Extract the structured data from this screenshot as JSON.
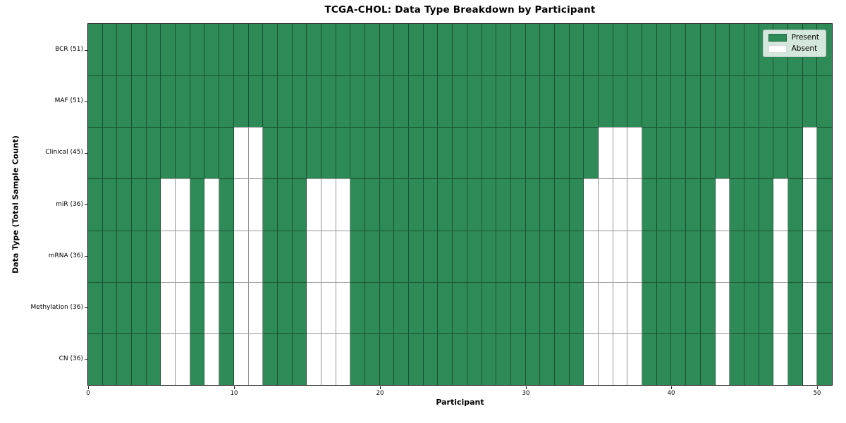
{
  "title": "TCGA-CHOL: Data Type Breakdown by Participant",
  "colors": {
    "present": "#2e8b57",
    "absent": "#ffffff",
    "grid_line": "rgba(0,0,0,0.42)",
    "legend_background": "rgba(255,255,255,0.8)"
  },
  "legend": {
    "items": [
      {
        "label": "Present",
        "swatch": "present-swatch",
        "color": "#2e8b57"
      },
      {
        "label": "Absent",
        "swatch": "absent-swatch",
        "color": "#ffffff"
      }
    ]
  },
  "chart_data": {
    "type": "heatmap",
    "title": "TCGA-CHOL: Data Type Breakdown by Participant",
    "xlabel": "Participant",
    "ylabel": "Data Type (Total Sample Count)",
    "x_ticks": [
      0,
      10,
      20,
      30,
      40,
      50
    ],
    "x_range": [
      0,
      51
    ],
    "n_participants": 51,
    "cell_values": {
      "present": 1,
      "absent": 0
    },
    "legend_entries": [
      "Present",
      "Absent"
    ],
    "legend_position": "upper right",
    "grid": true,
    "rows": [
      {
        "label": "BCR (51)",
        "total": 51,
        "absent_participants": []
      },
      {
        "label": "MAF (51)",
        "total": 51,
        "absent_participants": []
      },
      {
        "label": "Clinical (45)",
        "total": 45,
        "absent_participants": [
          10,
          11,
          35,
          36,
          37,
          49
        ]
      },
      {
        "label": "miR (36)",
        "total": 36,
        "absent_participants": [
          5,
          6,
          8,
          10,
          11,
          15,
          16,
          17,
          34,
          35,
          36,
          37,
          43,
          47,
          49
        ]
      },
      {
        "label": "mRNA (36)",
        "total": 36,
        "absent_participants": [
          5,
          6,
          8,
          10,
          11,
          15,
          16,
          17,
          34,
          35,
          36,
          37,
          43,
          47,
          49
        ]
      },
      {
        "label": "Methylation (36)",
        "total": 36,
        "absent_participants": [
          5,
          6,
          8,
          10,
          11,
          15,
          16,
          17,
          34,
          35,
          36,
          37,
          43,
          47,
          49
        ]
      },
      {
        "label": "CN (36)",
        "total": 36,
        "absent_participants": [
          5,
          6,
          8,
          10,
          11,
          15,
          16,
          17,
          34,
          35,
          36,
          37,
          43,
          47,
          49
        ]
      }
    ]
  }
}
